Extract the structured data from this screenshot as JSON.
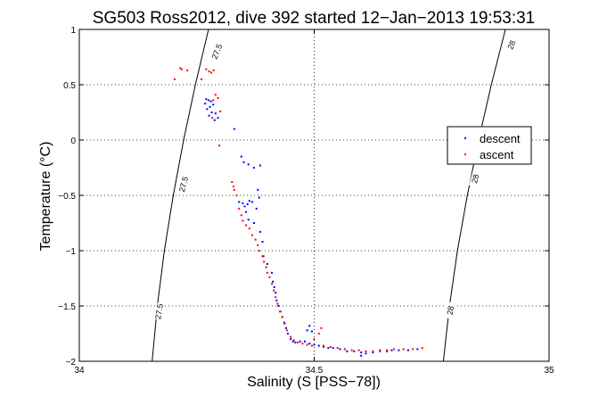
{
  "chart_data": {
    "type": "scatter",
    "title": "SG503 Ross2012, dive 392 started 12−Jan−2013 19:53:31",
    "xlabel": "Salinity (S [PSS−78])",
    "ylabel": "Temperature (°C)",
    "xlim": [
      34,
      35
    ],
    "ylim": [
      -2,
      1
    ],
    "x_ticks": [
      34,
      34.5,
      35
    ],
    "x_tick_labels": [
      "34",
      "34.5",
      "35"
    ],
    "y_ticks": [
      1,
      0.5,
      0,
      -0.5,
      -1,
      -1.5,
      -2
    ],
    "y_tick_labels": [
      "1",
      "0.5",
      "0",
      "−0.5",
      "−1",
      "−1.5",
      "−2"
    ],
    "grid": true,
    "grid_style": "dotted",
    "legend_position": "right",
    "contours": [
      {
        "label": "27.5",
        "points": [
          [
            34.155,
            -2.0
          ],
          [
            34.166,
            -1.5
          ],
          [
            34.181,
            -1.0
          ],
          [
            34.2,
            -0.5
          ],
          [
            34.222,
            0.0
          ],
          [
            34.247,
            0.5
          ],
          [
            34.275,
            1.0
          ]
        ],
        "label_positions": [
          [
            34.17,
            -1.55,
            -80
          ],
          [
            34.222,
            -0.4,
            -75
          ],
          [
            34.293,
            0.8,
            -68
          ]
        ]
      },
      {
        "label": "28",
        "points": [
          [
            34.775,
            -2.0
          ],
          [
            34.788,
            -1.5
          ],
          [
            34.805,
            -1.0
          ],
          [
            34.826,
            -0.5
          ],
          [
            34.85,
            0.0
          ],
          [
            34.877,
            0.5
          ],
          [
            34.907,
            1.0
          ]
        ],
        "label_positions": [
          [
            34.79,
            -1.54,
            -80
          ],
          [
            34.843,
            -0.35,
            -75
          ],
          [
            34.92,
            0.86,
            -68
          ]
        ]
      }
    ],
    "series": [
      {
        "name": "descent",
        "color": "#0000ff",
        "points": [
          [
            34.27,
            0.37
          ],
          [
            34.275,
            0.36
          ],
          [
            34.28,
            0.35
          ],
          [
            34.268,
            0.33
          ],
          [
            34.278,
            0.3
          ],
          [
            34.285,
            0.32
          ],
          [
            34.272,
            0.28
          ],
          [
            34.282,
            0.25
          ],
          [
            34.29,
            0.24
          ],
          [
            34.276,
            0.22
          ],
          [
            34.295,
            0.2
          ],
          [
            34.288,
            0.18
          ],
          [
            34.33,
            0.1
          ],
          [
            34.345,
            -0.15
          ],
          [
            34.35,
            -0.2
          ],
          [
            34.36,
            -0.22
          ],
          [
            34.372,
            -0.25
          ],
          [
            34.385,
            -0.23
          ],
          [
            34.34,
            -0.56
          ],
          [
            34.348,
            -0.57
          ],
          [
            34.352,
            -0.6
          ],
          [
            34.358,
            -0.58
          ],
          [
            34.362,
            -0.55
          ],
          [
            34.368,
            -0.56
          ],
          [
            34.355,
            -0.65
          ],
          [
            34.36,
            -0.72
          ],
          [
            34.372,
            -0.75
          ],
          [
            34.38,
            -0.45
          ],
          [
            34.383,
            -0.52
          ],
          [
            34.377,
            -0.62
          ],
          [
            34.385,
            -0.83
          ],
          [
            34.39,
            -0.92
          ],
          [
            34.392,
            -1.05
          ],
          [
            34.4,
            -1.12
          ],
          [
            34.41,
            -1.2
          ],
          [
            34.412,
            -1.28
          ],
          [
            34.415,
            -1.33
          ],
          [
            34.418,
            -1.38
          ],
          [
            34.42,
            -1.45
          ],
          [
            34.424,
            -1.5
          ],
          [
            34.428,
            -1.55
          ],
          [
            34.432,
            -1.6
          ],
          [
            34.436,
            -1.65
          ],
          [
            34.44,
            -1.7
          ],
          [
            34.444,
            -1.75
          ],
          [
            34.45,
            -1.8
          ],
          [
            34.455,
            -1.82
          ],
          [
            34.46,
            -1.83
          ],
          [
            34.47,
            -1.82
          ],
          [
            34.48,
            -1.82
          ],
          [
            34.49,
            -1.84
          ],
          [
            34.5,
            -1.85
          ],
          [
            34.485,
            -1.72
          ],
          [
            34.495,
            -1.73
          ],
          [
            34.49,
            -1.68
          ],
          [
            34.51,
            -1.86
          ],
          [
            34.52,
            -1.87
          ],
          [
            34.53,
            -1.88
          ],
          [
            34.54,
            -1.88
          ],
          [
            34.555,
            -1.89
          ],
          [
            34.57,
            -1.91
          ],
          [
            34.585,
            -1.91
          ],
          [
            34.6,
            -1.92
          ],
          [
            34.6,
            -1.95
          ],
          [
            34.61,
            -1.93
          ],
          [
            34.625,
            -1.92
          ],
          [
            34.64,
            -1.91
          ],
          [
            34.655,
            -1.91
          ],
          [
            34.665,
            -1.9
          ],
          [
            34.68,
            -1.9
          ],
          [
            34.7,
            -1.9
          ],
          [
            34.72,
            -1.89
          ]
        ]
      },
      {
        "name": "ascent",
        "color": "#ff0000",
        "points": [
          [
            34.23,
            0.63
          ],
          [
            34.215,
            0.65
          ],
          [
            34.218,
            0.64
          ],
          [
            34.27,
            0.64
          ],
          [
            34.276,
            0.62
          ],
          [
            34.281,
            0.61
          ],
          [
            34.286,
            0.63
          ],
          [
            34.203,
            0.55
          ],
          [
            34.26,
            0.55
          ],
          [
            34.29,
            0.41
          ],
          [
            34.295,
            0.38
          ],
          [
            34.285,
            0.36
          ],
          [
            34.3,
            0.26
          ],
          [
            34.283,
            0.2
          ],
          [
            34.298,
            -0.05
          ],
          [
            34.325,
            -0.38
          ],
          [
            34.328,
            -0.42
          ],
          [
            34.33,
            -0.45
          ],
          [
            34.335,
            -0.5
          ],
          [
            34.34,
            -0.62
          ],
          [
            34.345,
            -0.68
          ],
          [
            34.348,
            -0.73
          ],
          [
            34.355,
            -0.77
          ],
          [
            34.362,
            -0.8
          ],
          [
            34.368,
            -0.86
          ],
          [
            34.375,
            -0.9
          ],
          [
            34.38,
            -0.95
          ],
          [
            34.383,
            -1.0
          ],
          [
            34.39,
            -1.05
          ],
          [
            34.393,
            -1.1
          ],
          [
            34.398,
            -1.15
          ],
          [
            34.4,
            -1.2
          ],
          [
            34.405,
            -1.24
          ],
          [
            34.41,
            -1.3
          ],
          [
            34.414,
            -1.36
          ],
          [
            34.418,
            -1.42
          ],
          [
            34.422,
            -1.48
          ],
          [
            34.427,
            -1.55
          ],
          [
            34.432,
            -1.6
          ],
          [
            34.437,
            -1.66
          ],
          [
            34.442,
            -1.72
          ],
          [
            34.45,
            -1.78
          ],
          [
            34.457,
            -1.81
          ],
          [
            34.465,
            -1.83
          ],
          [
            34.475,
            -1.84
          ],
          [
            34.485,
            -1.85
          ],
          [
            34.495,
            -1.86
          ],
          [
            34.5,
            -1.8
          ],
          [
            34.51,
            -1.75
          ],
          [
            34.515,
            -1.7
          ],
          [
            34.52,
            -1.86
          ],
          [
            34.535,
            -1.87
          ],
          [
            34.55,
            -1.88
          ],
          [
            34.565,
            -1.89
          ],
          [
            34.58,
            -1.9
          ],
          [
            34.595,
            -1.9
          ],
          [
            34.61,
            -1.91
          ],
          [
            34.625,
            -1.91
          ],
          [
            34.64,
            -1.9
          ],
          [
            34.655,
            -1.9
          ],
          [
            34.67,
            -1.89
          ],
          [
            34.69,
            -1.89
          ],
          [
            34.71,
            -1.89
          ],
          [
            34.73,
            -1.88
          ]
        ]
      }
    ]
  }
}
